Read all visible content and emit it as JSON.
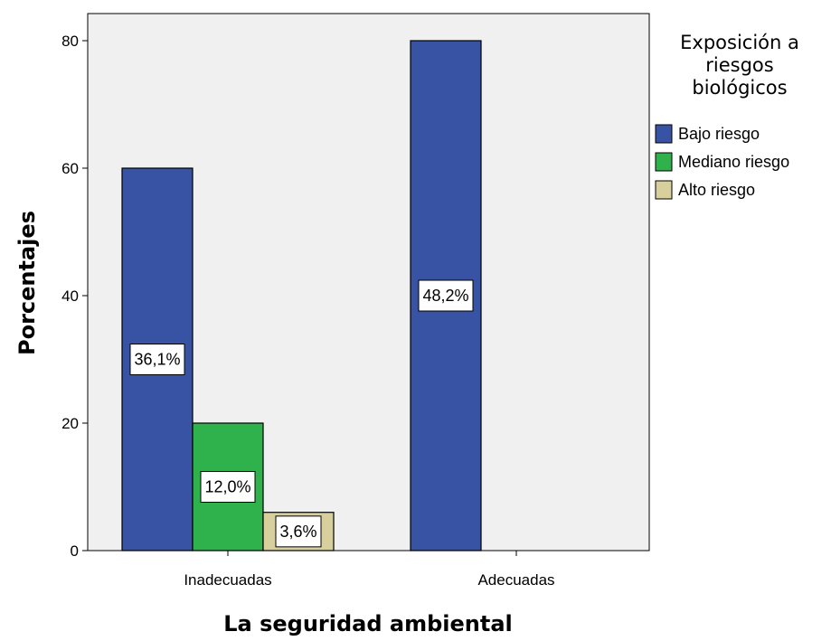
{
  "chart_data": {
    "type": "bar",
    "xlabel": "La seguridad ambiental",
    "ylabel": "Porcentajes",
    "ylim": [
      0,
      85
    ],
    "yticks": [
      "0",
      "20",
      "40",
      "60",
      "80"
    ],
    "ytick_values": [
      0,
      20,
      40,
      60,
      80
    ],
    "categories": [
      "Inadecuadas",
      "Adecuadas"
    ],
    "legend_title": [
      "Exposición a",
      "riesgos",
      "biológicos"
    ],
    "legend_position": "right",
    "grid": false,
    "series": [
      {
        "name": "Bajo riesgo",
        "color": "#3953a4",
        "values": [
          60,
          80
        ],
        "labels": [
          "36,1%",
          "48,2%"
        ]
      },
      {
        "name": "Mediano riesgo",
        "color": "#2fb24b",
        "values": [
          20,
          null
        ],
        "labels": [
          "12,0%",
          null
        ]
      },
      {
        "name": "Alto riesgo",
        "color": "#d8d09c",
        "values": [
          6,
          null
        ],
        "labels": [
          "3,6%",
          null
        ]
      }
    ],
    "plot_background": "#f0f0f0"
  }
}
